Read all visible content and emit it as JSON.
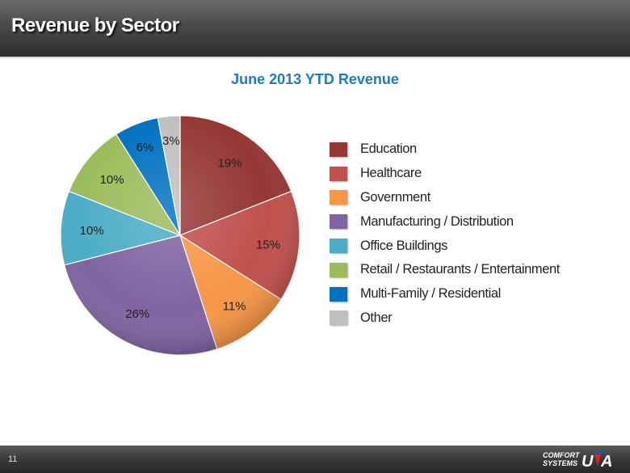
{
  "header": {
    "title": "Revenue by Sector"
  },
  "footer": {
    "page_number": "11",
    "logo_text": "COMFORT SYSTEMS USA"
  },
  "chart_data": {
    "type": "pie",
    "title": "June 2013 YTD Revenue",
    "legend_placement": "right",
    "slices": [
      {
        "label": "Education",
        "value": 19,
        "display": "19%",
        "color": "#953735"
      },
      {
        "label": "Healthcare",
        "value": 15,
        "display": "15%",
        "color": "#c0504d"
      },
      {
        "label": "Government",
        "value": 11,
        "display": "11%",
        "color": "#f79646"
      },
      {
        "label": "Manufacturing / Distribution",
        "value": 26,
        "display": "26%",
        "color": "#8064a2"
      },
      {
        "label": "Office Buildings",
        "value": 10,
        "display": "10%",
        "color": "#4bacc6"
      },
      {
        "label": "Retail / Restaurants / Entertainment",
        "value": 10,
        "display": "10%",
        "color": "#9bbb59"
      },
      {
        "label": "Multi-Family / Residential",
        "value": 6,
        "display": "6%",
        "color": "#0070c0"
      },
      {
        "label": "Other",
        "value": 3,
        "display": "3%",
        "color": "#bfbfbf"
      }
    ]
  }
}
